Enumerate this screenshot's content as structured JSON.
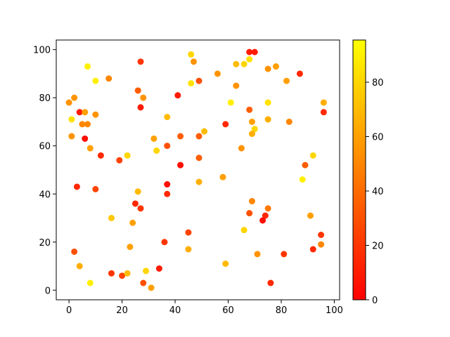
{
  "chart_data": {
    "type": "scatter",
    "x": [
      0,
      2,
      4,
      1,
      5,
      7,
      6,
      6,
      1,
      7,
      10,
      10,
      8,
      12,
      3,
      10,
      15,
      19,
      22,
      16,
      2,
      4,
      8,
      16,
      20,
      22,
      23,
      24,
      25,
      26,
      27,
      27,
      26,
      28,
      27,
      32,
      33,
      37,
      37,
      37,
      37,
      36,
      28,
      29,
      31,
      34,
      41,
      42,
      42,
      46,
      47,
      46,
      49,
      51,
      49,
      49,
      49,
      45,
      45,
      56,
      61,
      59,
      58,
      59,
      63,
      66,
      68,
      63,
      68,
      70,
      68,
      69,
      70,
      69,
      65,
      69,
      68,
      66,
      71,
      75,
      78,
      75,
      75,
      82,
      83,
      87,
      75,
      74,
      73,
      81,
      76,
      88,
      89,
      92,
      96,
      96,
      91,
      95,
      95,
      92
    ],
    "y": [
      78,
      80,
      74,
      71,
      69,
      69,
      74,
      63,
      64,
      93,
      87,
      73,
      59,
      56,
      43,
      42,
      88,
      54,
      56,
      30,
      16,
      10,
      3,
      7,
      6,
      7,
      18,
      28,
      36,
      41,
      34,
      95,
      83,
      80,
      76,
      63,
      58,
      72,
      60,
      44,
      40,
      20,
      3,
      8,
      1,
      9,
      81,
      64,
      52,
      98,
      95,
      86,
      87,
      66,
      64,
      55,
      45,
      24,
      17,
      90,
      78,
      69,
      47,
      11,
      94,
      94,
      96,
      85,
      99,
      99,
      75,
      70,
      67,
      65,
      59,
      37,
      32,
      25,
      15,
      92,
      93,
      78,
      71,
      87,
      70,
      90,
      34,
      31,
      29,
      15,
      3,
      46,
      52,
      56,
      78,
      74,
      31,
      23,
      19,
      17
    ],
    "c": [
      55,
      55,
      10,
      85,
      50,
      50,
      60,
      5,
      55,
      90,
      90,
      55,
      60,
      15,
      15,
      25,
      50,
      25,
      80,
      75,
      30,
      65,
      90,
      20,
      25,
      70,
      60,
      60,
      15,
      70,
      20,
      20,
      35,
      55,
      10,
      60,
      80,
      70,
      30,
      5,
      15,
      20,
      30,
      80,
      60,
      10,
      10,
      35,
      5,
      80,
      55,
      85,
      30,
      70,
      35,
      35,
      65,
      25,
      65,
      55,
      90,
      15,
      60,
      70,
      70,
      80,
      85,
      55,
      10,
      10,
      35,
      60,
      80,
      65,
      55,
      50,
      30,
      80,
      55,
      55,
      60,
      85,
      65,
      60,
      50,
      15,
      45,
      15,
      5,
      20,
      15,
      90,
      35,
      80,
      65,
      15,
      60,
      20,
      50,
      15
    ],
    "xlim": [
      -4.8,
      102
    ],
    "ylim": [
      -4,
      104
    ],
    "xticks": [
      0,
      20,
      40,
      60,
      80,
      100
    ],
    "yticks": [
      0,
      20,
      40,
      60,
      80,
      100
    ],
    "colormap": "autumn",
    "clim": [
      0,
      95.5
    ],
    "cticks": [
      0,
      20,
      40,
      60,
      80
    ]
  }
}
